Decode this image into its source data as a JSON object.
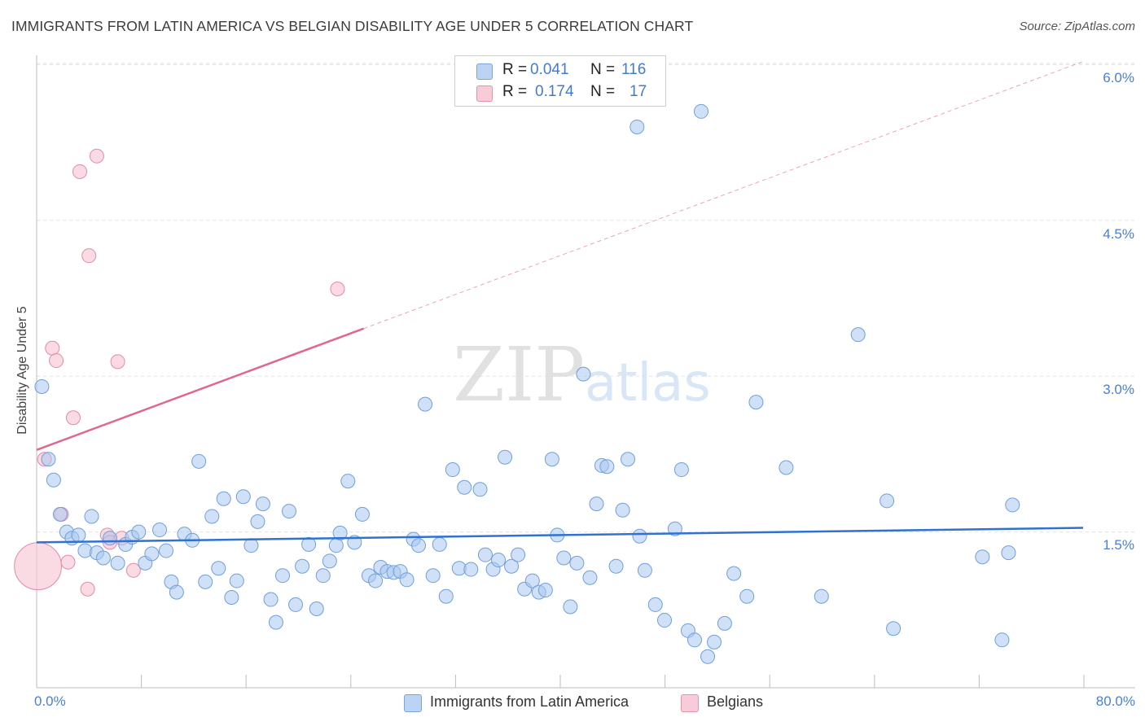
{
  "chart_data": {
    "type": "scatter",
    "title": "IMMIGRANTS FROM LATIN AMERICA VS BELGIAN DISABILITY AGE UNDER 5 CORRELATION CHART",
    "source": "Source: ZipAtlas.com",
    "xlabel": "",
    "ylabel": "Disability Age Under 5",
    "xlim": [
      0,
      80
    ],
    "ylim": [
      0,
      6.2
    ],
    "x_tick_labels": [
      "0.0%",
      "80.0%"
    ],
    "y_ticks": [
      1.5,
      3.0,
      4.5,
      6.0
    ],
    "y_tick_labels": [
      "1.5%",
      "3.0%",
      "4.5%",
      "6.0%"
    ],
    "grid": true,
    "watermark": "ZIPatlas",
    "legend": {
      "position": "top-center",
      "entries": [
        {
          "series": "Immigrants from Latin America",
          "r_label": "R =",
          "r_value": "0.041",
          "n_label": "N =",
          "n_value": "116"
        },
        {
          "series": "Belgians",
          "r_label": "R =",
          "r_value": "0.174",
          "n_label": "N =",
          "n_value": "17"
        }
      ]
    },
    "series": [
      {
        "name": "Immigrants from Latin America",
        "color": "#a9c8f0",
        "stroke": "#6f9fdc",
        "trend": {
          "x0": 0,
          "y0": 1.4,
          "x1": 80,
          "y1": 1.54,
          "color": "#2f72d1",
          "dashed_from": null
        },
        "points": [
          [
            0.4,
            2.9
          ],
          [
            0.9,
            2.2
          ],
          [
            1.3,
            2.0
          ],
          [
            1.8,
            1.67
          ],
          [
            2.3,
            1.5
          ],
          [
            2.7,
            1.44
          ],
          [
            3.2,
            1.47
          ],
          [
            3.7,
            1.32
          ],
          [
            4.2,
            1.65
          ],
          [
            4.6,
            1.3
          ],
          [
            5.1,
            1.25
          ],
          [
            5.6,
            1.44
          ],
          [
            6.2,
            1.2
          ],
          [
            6.8,
            1.38
          ],
          [
            7.3,
            1.45
          ],
          [
            7.8,
            1.5
          ],
          [
            8.3,
            1.2
          ],
          [
            8.8,
            1.29
          ],
          [
            9.4,
            1.52
          ],
          [
            9.9,
            1.32
          ],
          [
            10.3,
            1.02
          ],
          [
            10.7,
            0.92
          ],
          [
            11.3,
            1.48
          ],
          [
            11.9,
            1.42
          ],
          [
            12.4,
            2.18
          ],
          [
            12.9,
            1.02
          ],
          [
            13.4,
            1.65
          ],
          [
            13.9,
            1.15
          ],
          [
            14.3,
            1.82
          ],
          [
            14.9,
            0.87
          ],
          [
            15.3,
            1.03
          ],
          [
            15.8,
            1.84
          ],
          [
            16.4,
            1.37
          ],
          [
            16.9,
            1.6
          ],
          [
            17.3,
            1.77
          ],
          [
            17.9,
            0.85
          ],
          [
            18.3,
            0.63
          ],
          [
            18.8,
            1.08
          ],
          [
            19.3,
            1.7
          ],
          [
            19.8,
            0.8
          ],
          [
            20.3,
            1.17
          ],
          [
            20.8,
            1.38
          ],
          [
            21.4,
            0.76
          ],
          [
            21.9,
            1.08
          ],
          [
            22.4,
            1.22
          ],
          [
            22.9,
            1.37
          ],
          [
            23.2,
            1.49
          ],
          [
            23.8,
            1.99
          ],
          [
            24.3,
            1.4
          ],
          [
            24.9,
            1.67
          ],
          [
            25.4,
            1.08
          ],
          [
            25.9,
            1.03
          ],
          [
            26.3,
            1.16
          ],
          [
            26.8,
            1.12
          ],
          [
            27.3,
            1.11
          ],
          [
            27.8,
            1.12
          ],
          [
            28.3,
            1.04
          ],
          [
            28.8,
            1.43
          ],
          [
            29.2,
            1.37
          ],
          [
            29.7,
            2.73
          ],
          [
            30.3,
            1.08
          ],
          [
            30.8,
            1.38
          ],
          [
            31.3,
            0.88
          ],
          [
            31.8,
            2.1
          ],
          [
            32.3,
            1.15
          ],
          [
            32.7,
            1.93
          ],
          [
            33.2,
            1.14
          ],
          [
            33.9,
            1.91
          ],
          [
            34.3,
            1.28
          ],
          [
            34.9,
            1.14
          ],
          [
            35.3,
            1.23
          ],
          [
            35.8,
            2.22
          ],
          [
            36.3,
            1.17
          ],
          [
            36.8,
            1.28
          ],
          [
            37.3,
            0.95
          ],
          [
            37.9,
            1.03
          ],
          [
            38.4,
            0.92
          ],
          [
            38.9,
            0.94
          ],
          [
            39.4,
            2.2
          ],
          [
            39.8,
            1.47
          ],
          [
            40.3,
            1.25
          ],
          [
            40.8,
            0.78
          ],
          [
            41.3,
            1.2
          ],
          [
            41.8,
            3.02
          ],
          [
            42.3,
            1.06
          ],
          [
            42.8,
            1.77
          ],
          [
            43.2,
            2.14
          ],
          [
            43.6,
            2.13
          ],
          [
            44.3,
            1.17
          ],
          [
            44.8,
            1.71
          ],
          [
            45.2,
            2.2
          ],
          [
            45.9,
            5.4
          ],
          [
            46.1,
            1.46
          ],
          [
            46.5,
            1.13
          ],
          [
            47.3,
            0.8
          ],
          [
            48.0,
            0.65
          ],
          [
            48.8,
            1.53
          ],
          [
            49.3,
            2.1
          ],
          [
            49.8,
            0.55
          ],
          [
            50.3,
            0.46
          ],
          [
            50.8,
            5.55
          ],
          [
            51.3,
            0.3
          ],
          [
            51.8,
            0.44
          ],
          [
            52.6,
            0.62
          ],
          [
            53.3,
            1.1
          ],
          [
            54.3,
            0.88
          ],
          [
            55.0,
            2.75
          ],
          [
            57.3,
            2.12
          ],
          [
            60.0,
            0.88
          ],
          [
            62.8,
            3.4
          ],
          [
            65.0,
            1.8
          ],
          [
            65.5,
            0.57
          ],
          [
            72.3,
            1.26
          ],
          [
            73.8,
            0.46
          ],
          [
            74.3,
            1.3
          ],
          [
            74.6,
            1.76
          ]
        ]
      },
      {
        "name": "Belgians",
        "color": "#f7c6d4",
        "stroke": "#e58aa6",
        "trend": {
          "x0": 0,
          "y0": 2.29,
          "x1": 80,
          "y1": 6.03,
          "solid_until": 25,
          "color": "#e0678f"
        },
        "points": [
          [
            0.1,
            1.17
          ],
          [
            0.6,
            2.2
          ],
          [
            1.2,
            3.27
          ],
          [
            1.5,
            3.15
          ],
          [
            1.9,
            1.67
          ],
          [
            2.4,
            1.21
          ],
          [
            2.8,
            2.6
          ],
          [
            3.3,
            4.97
          ],
          [
            3.9,
            0.95
          ],
          [
            4.0,
            4.16
          ],
          [
            4.6,
            5.12
          ],
          [
            5.4,
            1.47
          ],
          [
            5.6,
            1.4
          ],
          [
            6.2,
            3.14
          ],
          [
            6.5,
            1.44
          ],
          [
            7.4,
            1.13
          ],
          [
            23.0,
            3.84
          ]
        ],
        "point_sizes": [
          3.4,
          1,
          1,
          1,
          1,
          1,
          1,
          1,
          1,
          1,
          1,
          1,
          1,
          1,
          1,
          1,
          1
        ]
      }
    ]
  }
}
